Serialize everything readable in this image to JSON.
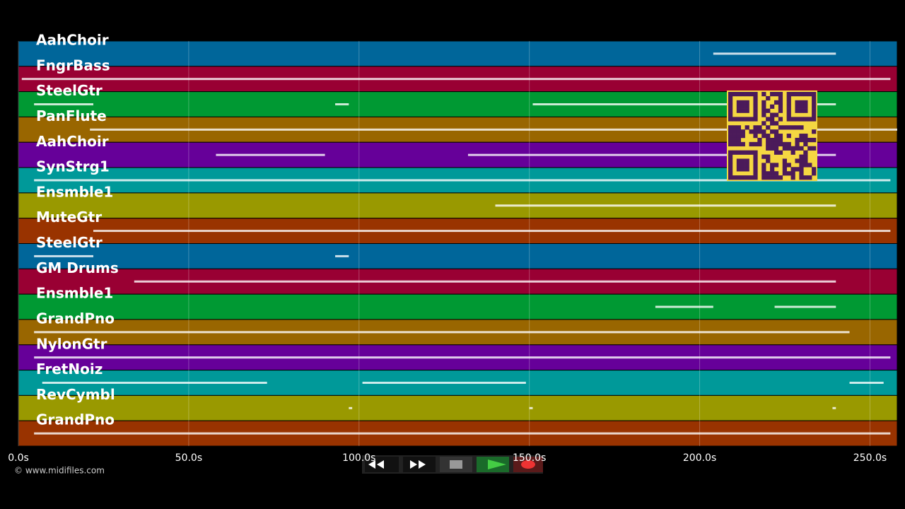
{
  "chart_data": {
    "type": "timeline",
    "xlim": [
      0,
      258
    ],
    "xticks": [
      {
        "value": 0,
        "label": "0.0s"
      },
      {
        "value": 50,
        "label": "50.0s"
      },
      {
        "value": 100,
        "label": "100.0s"
      },
      {
        "value": 150,
        "label": "150.0s"
      },
      {
        "value": 200,
        "label": "200.0s"
      },
      {
        "value": 250,
        "label": "250.0s"
      }
    ],
    "grid": true,
    "tracks": [
      {
        "name": "AahChoir",
        "color": "#00669a",
        "notes": [
          [
            204,
            240
          ]
        ]
      },
      {
        "name": "FngrBass",
        "color": "#990033",
        "notes": [
          [
            1,
            256
          ]
        ]
      },
      {
        "name": "SteelGtr",
        "color": "#009933",
        "notes": [
          [
            4.6,
            22
          ],
          [
            93,
            97
          ],
          [
            151,
            240
          ]
        ]
      },
      {
        "name": "PanFlute",
        "color": "#996600",
        "notes": [
          [
            21,
            258
          ]
        ]
      },
      {
        "name": "AahChoir",
        "color": "#660099",
        "notes": [
          [
            58,
            90
          ],
          [
            132,
            240
          ]
        ]
      },
      {
        "name": "SynStrg1",
        "color": "#009999",
        "notes": [
          [
            4.6,
            256
          ]
        ]
      },
      {
        "name": "Ensmble1",
        "color": "#999900",
        "notes": [
          [
            140,
            240
          ]
        ]
      },
      {
        "name": "MuteGtr",
        "color": "#993300",
        "notes": [
          [
            22,
            256
          ]
        ]
      },
      {
        "name": "SteelGtr",
        "color": "#00669a",
        "notes": [
          [
            4.6,
            22
          ],
          [
            93,
            97
          ]
        ]
      },
      {
        "name": "GM Drums",
        "color": "#990033",
        "notes": [
          [
            34,
            240
          ]
        ]
      },
      {
        "name": "Ensmble1",
        "color": "#009933",
        "notes": [
          [
            187,
            204
          ],
          [
            222,
            240
          ]
        ]
      },
      {
        "name": "GrandPno",
        "color": "#996600",
        "notes": [
          [
            4.6,
            244
          ]
        ]
      },
      {
        "name": "NylonGtr",
        "color": "#660099",
        "notes": [
          [
            4.6,
            256
          ]
        ]
      },
      {
        "name": "FretNoiz",
        "color": "#009999",
        "notes": [
          [
            7,
            73
          ],
          [
            101,
            149
          ],
          [
            244,
            254
          ]
        ]
      },
      {
        "name": "RevCymbl",
        "color": "#999900",
        "notes": [
          [
            97,
            98
          ],
          [
            150,
            151
          ],
          [
            239,
            240
          ]
        ]
      },
      {
        "name": "GrandPno",
        "color": "#993300",
        "notes": [
          [
            4.6,
            256
          ]
        ]
      }
    ]
  },
  "footer": "© www.midifiles.com"
}
